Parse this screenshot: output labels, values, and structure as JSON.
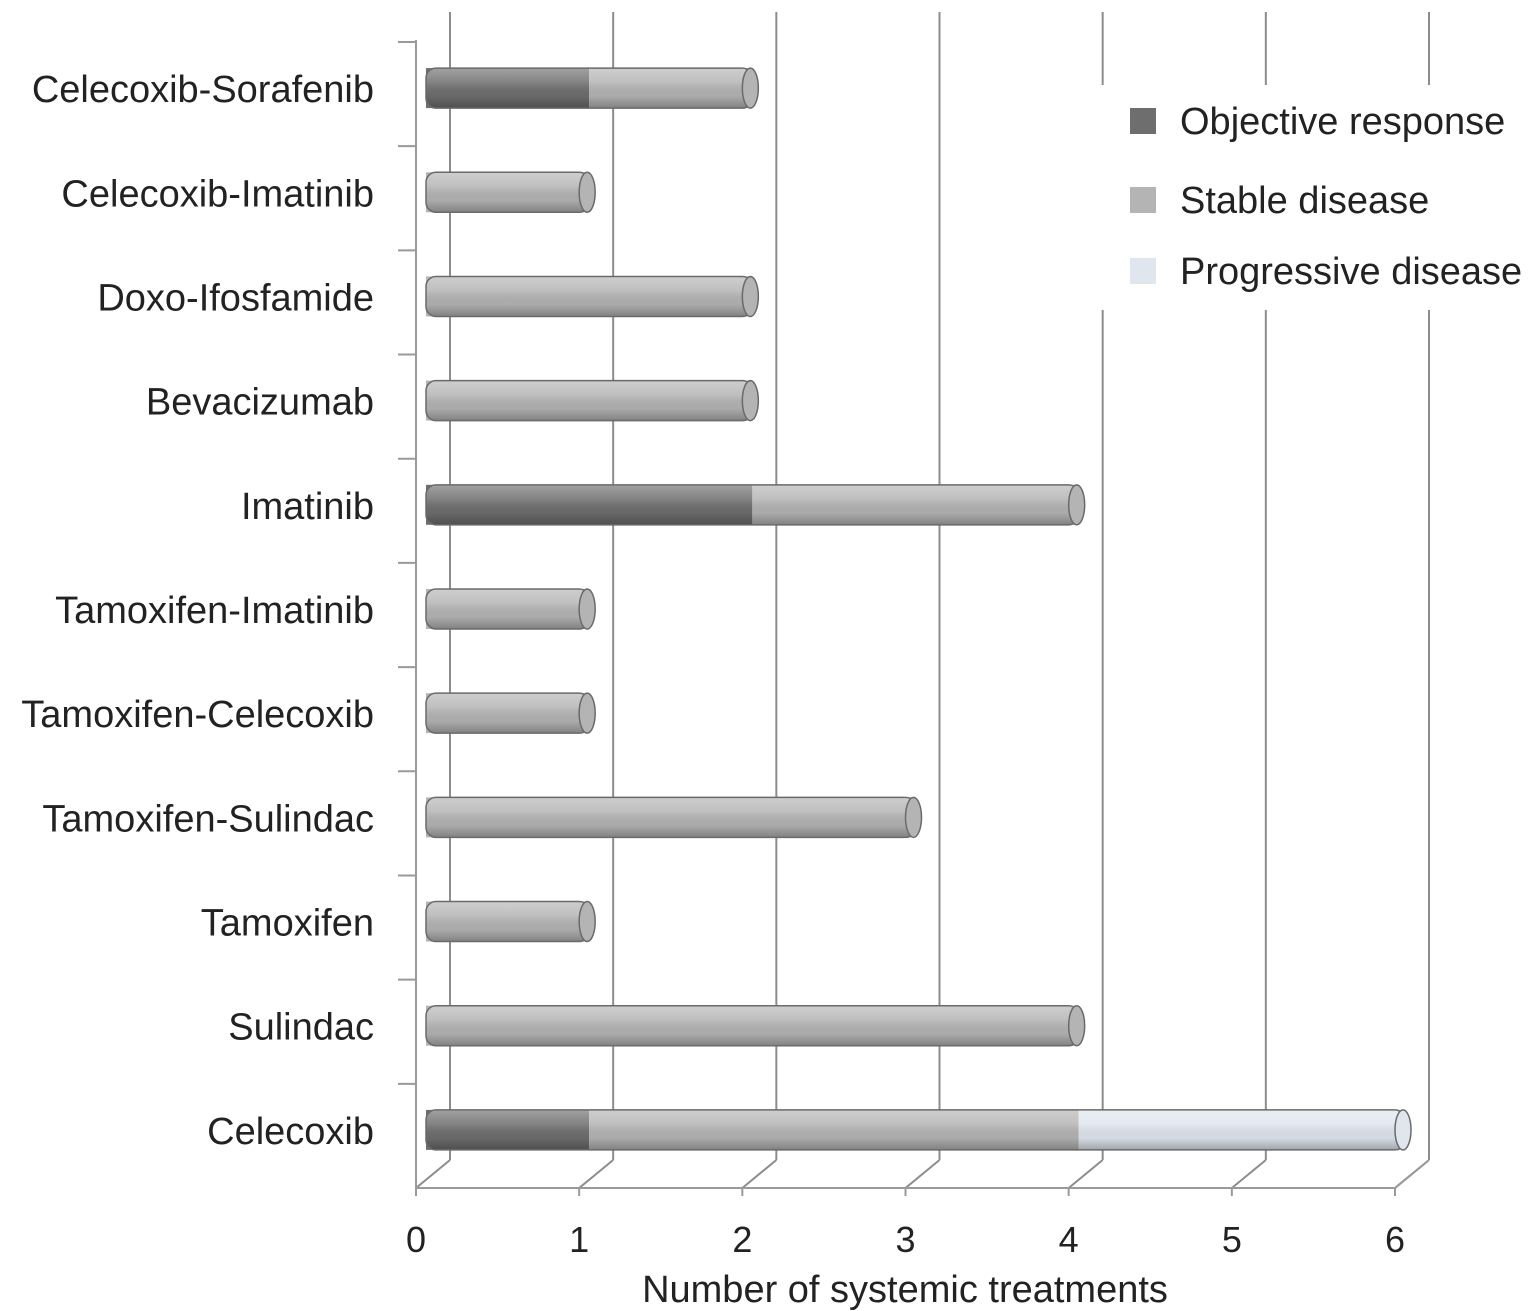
{
  "chart_data": {
    "type": "bar",
    "orientation": "horizontal",
    "stacked": true,
    "style": "3d-cylinder",
    "categories": [
      "Celecoxib-Sorafenib",
      "Celecoxib-Imatinib",
      "Doxo-Ifosfamide",
      "Bevacizumab",
      "Imatinib",
      "Tamoxifen-Imatinib",
      "Tamoxifen-Celecoxib",
      "Tamoxifen-Sulindac",
      "Tamoxifen",
      "Sulindac",
      "Celecoxib"
    ],
    "series": [
      {
        "name": "Objective response",
        "color": "#6e6e6e",
        "values": [
          1,
          0,
          0,
          0,
          2,
          0,
          0,
          0,
          0,
          0,
          1
        ]
      },
      {
        "name": "Stable disease",
        "color": "#b4b4b4",
        "values": [
          1,
          1,
          2,
          2,
          2,
          1,
          1,
          3,
          1,
          4,
          3
        ]
      },
      {
        "name": "Progressive disease",
        "color": "#dfe6ee",
        "values": [
          0,
          0,
          0,
          0,
          0,
          0,
          0,
          0,
          0,
          0,
          2
        ]
      }
    ],
    "xlabel": "Number of systemic treatments",
    "ylabel": "",
    "xlim": [
      0,
      6
    ],
    "xticks": [
      "0",
      "1",
      "2",
      "3",
      "4",
      "5",
      "6"
    ],
    "grid": true,
    "legend_position": "top-right"
  }
}
